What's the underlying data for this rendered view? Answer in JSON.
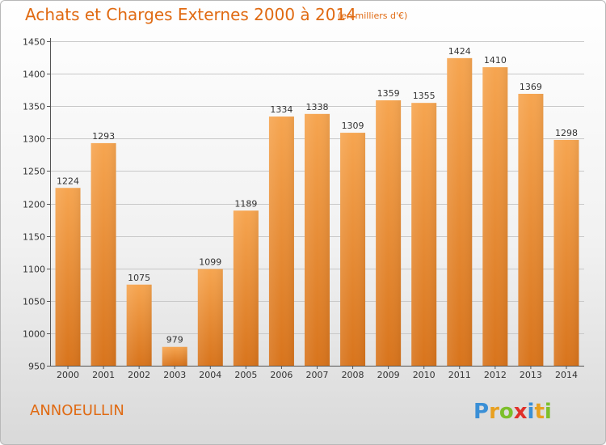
{
  "header": {
    "title": "Achats et Charges Externes 2000 à 2014",
    "subtitle": "(en milliers d'€)"
  },
  "footer": {
    "commune": "ANNOEULLIN",
    "logo_text": "Proxiti"
  },
  "colors": {
    "accent": "#e06a12",
    "bar_top": "#f6a550",
    "bar_bottom": "#d8741c"
  },
  "chart_data": {
    "type": "bar",
    "title": "Achats et Charges Externes 2000 à 2014",
    "subtitle": "(en milliers d'€)",
    "xlabel": "",
    "ylabel": "",
    "categories": [
      "2000",
      "2001",
      "2002",
      "2003",
      "2004",
      "2005",
      "2006",
      "2007",
      "2008",
      "2009",
      "2010",
      "2011",
      "2012",
      "2013",
      "2014"
    ],
    "values": [
      1224,
      1293,
      1075,
      979,
      1099,
      1189,
      1334,
      1338,
      1309,
      1359,
      1355,
      1424,
      1410,
      1369,
      1298
    ],
    "ylim": [
      950,
      1450
    ],
    "yticks": [
      950,
      1000,
      1050,
      1100,
      1150,
      1200,
      1250,
      1300,
      1350,
      1400,
      1450
    ],
    "grid": true,
    "legend": "none"
  }
}
